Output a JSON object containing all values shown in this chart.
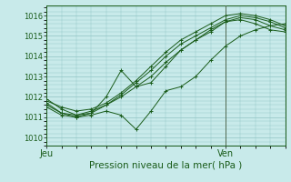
{
  "title": "",
  "xlabel": "Pression niveau de la mer( hPa )",
  "ylabel": "",
  "bg_color": "#c8eaea",
  "grid_color": "#90c4c4",
  "line_color": "#1a5c1a",
  "spine_color": "#1a5c1a",
  "vline_color": "#506850",
  "xlim": [
    0,
    48
  ],
  "ylim": [
    1009.6,
    1016.5
  ],
  "yticks": [
    1010,
    1011,
    1012,
    1013,
    1014,
    1015,
    1016
  ],
  "xtick_positions": [
    0,
    36
  ],
  "xtick_labels": [
    "Jeu",
    "Ven"
  ],
  "vline_x": 36,
  "series": [
    {
      "x": [
        0,
        3,
        6,
        9,
        12,
        15,
        18,
        21,
        24,
        27,
        30,
        33,
        36,
        39,
        42,
        45,
        48
      ],
      "y": [
        1011.8,
        1011.5,
        1011.3,
        1011.4,
        1011.7,
        1012.2,
        1012.8,
        1013.5,
        1014.2,
        1014.8,
        1015.2,
        1015.6,
        1016.0,
        1016.1,
        1016.0,
        1015.8,
        1015.5
      ]
    },
    {
      "x": [
        0,
        3,
        6,
        9,
        12,
        15,
        18,
        21,
        24,
        27,
        30,
        33,
        36,
        39,
        42,
        45,
        48
      ],
      "y": [
        1011.5,
        1011.1,
        1011.0,
        1011.2,
        1011.6,
        1012.1,
        1012.7,
        1013.3,
        1014.0,
        1014.6,
        1015.0,
        1015.4,
        1015.8,
        1016.0,
        1015.9,
        1015.7,
        1015.4
      ]
    },
    {
      "x": [
        0,
        3,
        6,
        9,
        12,
        15,
        18,
        21,
        24,
        27,
        30,
        33,
        36,
        39,
        42,
        45,
        48
      ],
      "y": [
        1011.9,
        1011.4,
        1011.1,
        1011.2,
        1012.0,
        1013.3,
        1012.5,
        1012.7,
        1013.5,
        1014.3,
        1014.8,
        1015.3,
        1015.7,
        1015.8,
        1015.6,
        1015.3,
        1015.2
      ]
    },
    {
      "x": [
        0,
        3,
        6,
        9,
        12,
        15,
        18,
        21,
        24,
        27,
        30,
        33,
        36,
        39,
        42,
        45,
        48
      ],
      "y": [
        1011.7,
        1011.2,
        1011.0,
        1011.1,
        1011.3,
        1011.1,
        1010.4,
        1011.3,
        1012.3,
        1012.5,
        1013.0,
        1013.8,
        1014.5,
        1015.0,
        1015.3,
        1015.5,
        1015.6
      ]
    },
    {
      "x": [
        0,
        3,
        6,
        9,
        12,
        15,
        18,
        21,
        24,
        27,
        30,
        33,
        36,
        39,
        42,
        45,
        48
      ],
      "y": [
        1011.6,
        1011.2,
        1011.1,
        1011.3,
        1011.6,
        1012.0,
        1012.5,
        1013.0,
        1013.7,
        1014.3,
        1014.8,
        1015.2,
        1015.7,
        1015.9,
        1015.8,
        1015.5,
        1015.3
      ]
    }
  ]
}
